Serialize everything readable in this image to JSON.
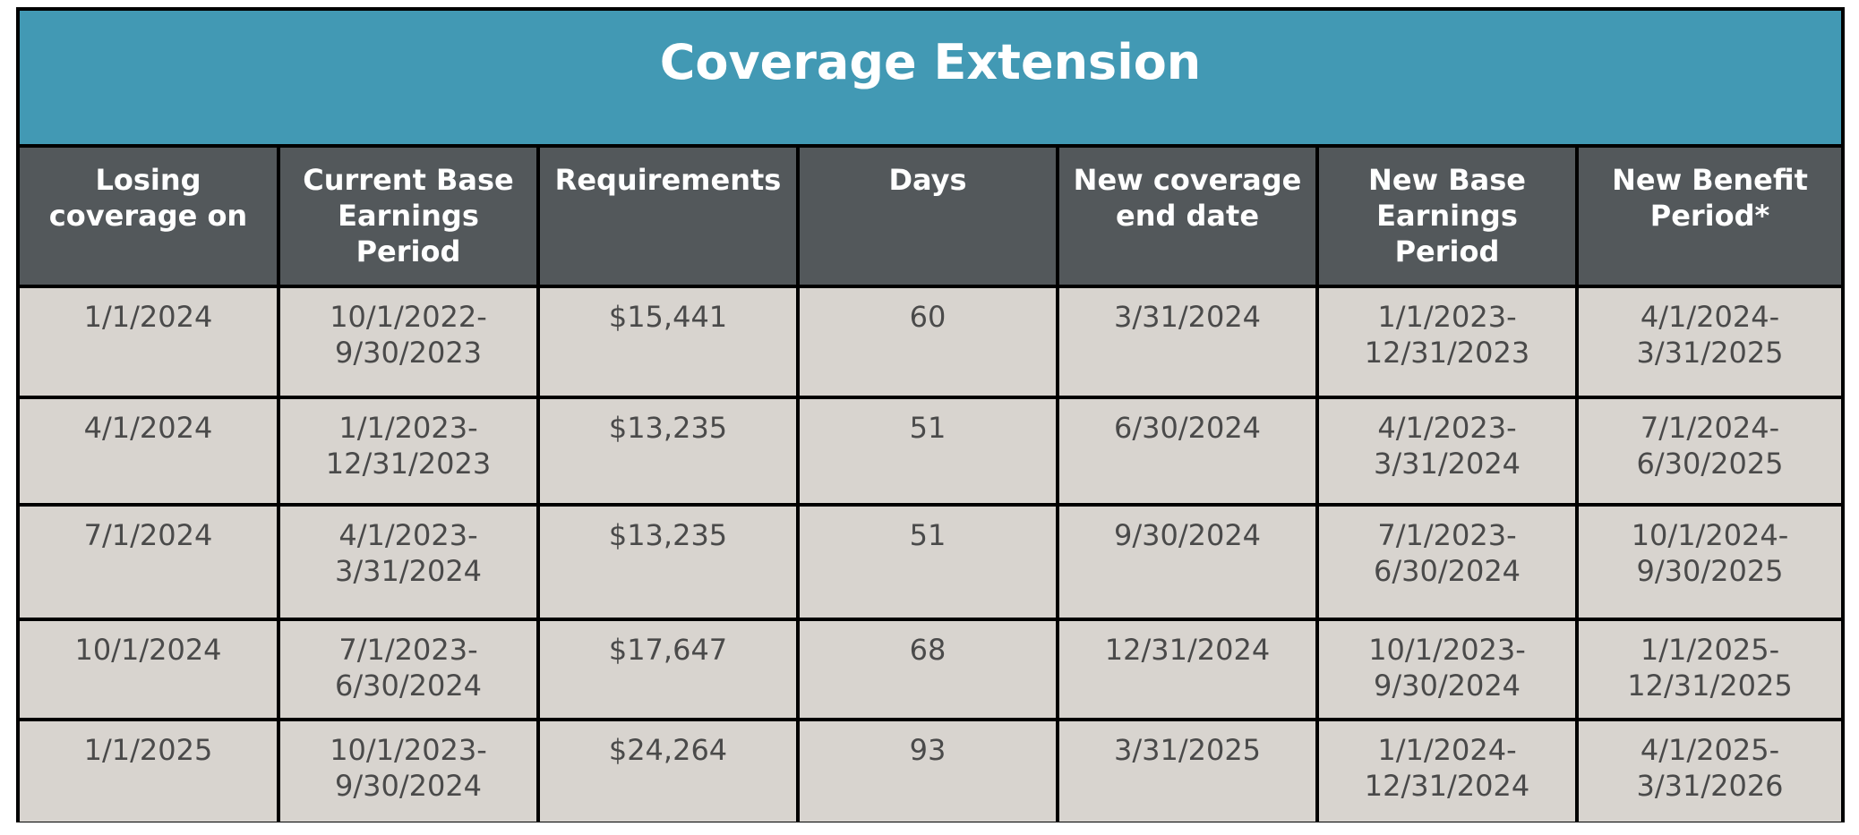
{
  "title": "Coverage Extension",
  "headers": [
    [
      "Losing",
      "coverage on"
    ],
    [
      "Current Base",
      "Earnings",
      "Period"
    ],
    [
      "Requirements"
    ],
    [
      "Days"
    ],
    [
      "New coverage",
      "end date"
    ],
    [
      "New Base",
      "Earnings",
      "Period"
    ],
    [
      "New Benefit",
      "Period*"
    ]
  ],
  "rows": [
    [
      [
        "1/1/2024"
      ],
      [
        "10/1/2022-",
        "9/30/2023"
      ],
      [
        "$15,441"
      ],
      [
        "60"
      ],
      [
        "3/31/2024"
      ],
      [
        "1/1/2023-",
        "12/31/2023"
      ],
      [
        "4/1/2024-",
        "3/31/2025"
      ]
    ],
    [
      [
        "4/1/2024"
      ],
      [
        "1/1/2023-",
        "12/31/2023"
      ],
      [
        "$13,235"
      ],
      [
        "51"
      ],
      [
        "6/30/2024"
      ],
      [
        "4/1/2023-",
        "3/31/2024"
      ],
      [
        "7/1/2024-",
        "6/30/2025"
      ]
    ],
    [
      [
        "7/1/2024"
      ],
      [
        "4/1/2023-",
        "3/31/2024"
      ],
      [
        "$13,235"
      ],
      [
        "51"
      ],
      [
        "9/30/2024"
      ],
      [
        "7/1/2023-",
        "6/30/2024"
      ],
      [
        "10/1/2024-",
        "9/30/2025"
      ]
    ],
    [
      [
        "10/1/2024"
      ],
      [
        "7/1/2023-",
        "6/30/2024"
      ],
      [
        "$17,647"
      ],
      [
        "68"
      ],
      [
        "12/31/2024"
      ],
      [
        "10/1/2023-",
        "9/30/2024"
      ],
      [
        "1/1/2025-",
        "12/31/2025"
      ]
    ],
    [
      [
        "1/1/2025"
      ],
      [
        "10/1/2023-",
        "9/30/2024"
      ],
      [
        "$24,264"
      ],
      [
        "93"
      ],
      [
        "3/31/2025"
      ],
      [
        "1/1/2024-",
        "12/31/2024"
      ],
      [
        "4/1/2025-",
        "3/31/2026"
      ]
    ]
  ],
  "colors": {
    "title_background": "#4299b4",
    "header_background": "#53585b",
    "cell_background": "#d8d4cf",
    "border": "#000000"
  }
}
